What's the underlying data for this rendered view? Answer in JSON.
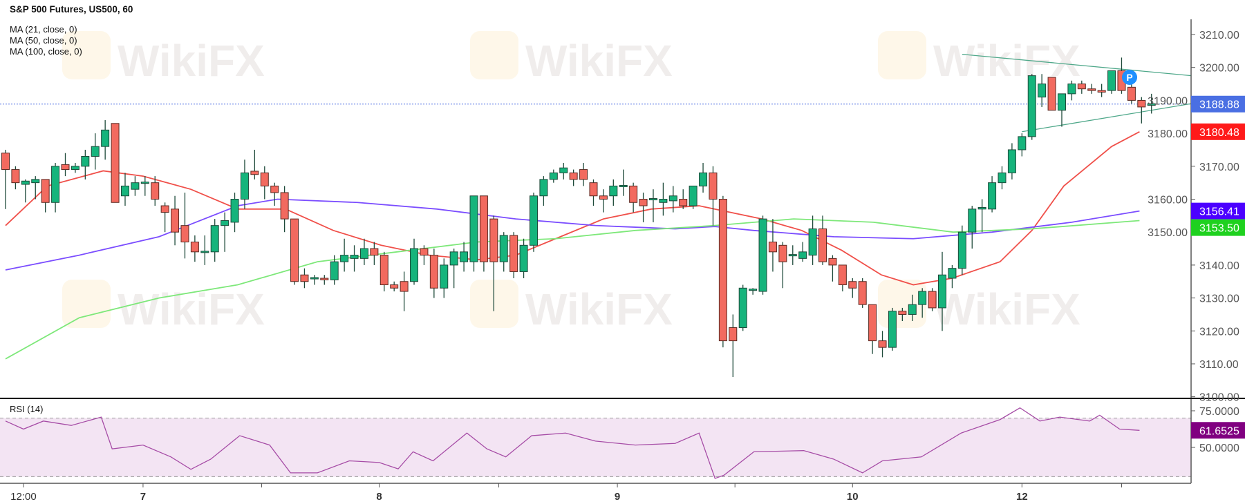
{
  "header": {
    "title": "S&P 500 Futures, US500, 60",
    "indicators": [
      "MA (21, close, 0)",
      "MA (50, close, 0)",
      "MA (100, close, 0)"
    ],
    "rsi_label": "RSI (14)"
  },
  "watermark": "WikiFX",
  "chart_data": [
    {
      "type": "candlestick",
      "title": "S&P 500 Futures, US500, 60",
      "ylim": [
        3100,
        3212
      ],
      "y_ticks": [
        "3210.00",
        "3200.00",
        "3190.00",
        "3180.00",
        "3170.00",
        "3160.00",
        "3150.00",
        "3140.00",
        "3130.00",
        "3120.00",
        "3110.00",
        "3100.00"
      ],
      "x_ticks": [
        {
          "bar": 1.8,
          "label": "12:00"
        },
        {
          "bar": 13.8,
          "label": "7"
        },
        {
          "bar": 25.7,
          "label": ""
        },
        {
          "bar": 37.5,
          "label": "8"
        },
        {
          "bar": 49.5,
          "label": ""
        },
        {
          "bar": 61.4,
          "label": "9"
        },
        {
          "bar": 73.2,
          "label": ""
        },
        {
          "bar": 85,
          "label": "10"
        },
        {
          "bar": 102,
          "label": "12"
        },
        {
          "bar": 112,
          "label": ""
        }
      ],
      "colors": {
        "up": "#16b47c",
        "down": "#f26a5f",
        "outline": "#5a2a22",
        "ma21": "#f0504a",
        "ma50": "#7b4dff",
        "ma100": "#7ee87a",
        "trendline": "#4fa88a"
      },
      "ohlc": [
        [
          3174,
          3175,
          3157,
          3169
        ],
        [
          3169,
          3170,
          3163,
          3165
        ],
        [
          3164.5,
          3166,
          3159,
          3165.5
        ],
        [
          3165,
          3167,
          3160,
          3166
        ],
        [
          3166,
          3166,
          3156,
          3159
        ],
        [
          3159,
          3171,
          3156,
          3170
        ],
        [
          3170.5,
          3174,
          3167,
          3169
        ],
        [
          3169,
          3171,
          3168,
          3170
        ],
        [
          3170,
          3175,
          3166,
          3173
        ],
        [
          3173,
          3180,
          3169,
          3176
        ],
        [
          3176,
          3184,
          3172,
          3181
        ],
        [
          3183,
          3183,
          3159,
          3159
        ],
        [
          3161,
          3168,
          3158,
          3164
        ],
        [
          3163,
          3167,
          3161,
          3165
        ],
        [
          3165,
          3167,
          3161,
          3165.2
        ],
        [
          3165,
          3167,
          3158,
          3160
        ],
        [
          3158,
          3159,
          3150,
          3156
        ],
        [
          3157,
          3161,
          3146,
          3150
        ],
        [
          3152,
          3162,
          3142,
          3147
        ],
        [
          3147,
          3149,
          3141,
          3144
        ],
        [
          3144,
          3149,
          3140,
          3144.2
        ],
        [
          3144,
          3154,
          3141,
          3152
        ],
        [
          3152,
          3156,
          3144,
          3153.5
        ],
        [
          3153,
          3162,
          3150,
          3160
        ],
        [
          3160,
          3172,
          3157,
          3168
        ],
        [
          3168.5,
          3175,
          3166,
          3167.5
        ],
        [
          3168,
          3170,
          3160,
          3164
        ],
        [
          3164,
          3165,
          3158,
          3162
        ],
        [
          3162,
          3164,
          3150,
          3154
        ],
        [
          3154,
          3154,
          3134,
          3135
        ],
        [
          3137,
          3139,
          3133,
          3135
        ],
        [
          3136,
          3137,
          3134,
          3136.2
        ],
        [
          3136,
          3137,
          3134,
          3135.5
        ],
        [
          3135.5,
          3143,
          3134,
          3141
        ],
        [
          3141,
          3148,
          3138,
          3143
        ],
        [
          3142,
          3146,
          3138,
          3143
        ],
        [
          3142,
          3148,
          3140,
          3145
        ],
        [
          3145,
          3147,
          3140,
          3143
        ],
        [
          3143,
          3144,
          3132,
          3134
        ],
        [
          3134,
          3135,
          3132,
          3133
        ],
        [
          3135,
          3138,
          3126,
          3132
        ],
        [
          3135,
          3148,
          3134,
          3145
        ],
        [
          3145,
          3146,
          3140,
          3143
        ],
        [
          3143,
          3145,
          3130,
          3133
        ],
        [
          3133,
          3142,
          3130,
          3140
        ],
        [
          3140,
          3145,
          3133,
          3144
        ],
        [
          3141,
          3147,
          3138,
          3144
        ],
        [
          3141,
          3161,
          3138,
          3161
        ],
        [
          3161,
          3161,
          3138,
          3141
        ],
        [
          3154,
          3155,
          3126,
          3141
        ],
        [
          3141,
          3150,
          3138,
          3149
        ],
        [
          3149,
          3150,
          3136,
          3138
        ],
        [
          3138,
          3148,
          3136,
          3146
        ],
        [
          3146,
          3162,
          3144,
          3161
        ],
        [
          3161,
          3167,
          3158,
          3166
        ],
        [
          3166,
          3169,
          3165,
          3168
        ],
        [
          3168,
          3171,
          3166,
          3169.5
        ],
        [
          3168,
          3169,
          3164,
          3166
        ],
        [
          3169,
          3171,
          3164,
          3166
        ],
        [
          3165,
          3166,
          3158,
          3161
        ],
        [
          3161,
          3163,
          3156,
          3160
        ],
        [
          3161,
          3166,
          3158,
          3164
        ],
        [
          3164,
          3169,
          3161,
          3164.2
        ],
        [
          3164,
          3165,
          3156,
          3159
        ],
        [
          3160,
          3162,
          3153,
          3158
        ],
        [
          3160,
          3163,
          3153,
          3160.2
        ],
        [
          3159,
          3165,
          3155,
          3160
        ],
        [
          3159.5,
          3164,
          3156,
          3161
        ],
        [
          3160,
          3163,
          3157,
          3158
        ],
        [
          3158,
          3164,
          3157,
          3164
        ],
        [
          3164,
          3171,
          3162,
          3168
        ],
        [
          3168,
          3170,
          3152,
          3160
        ],
        [
          3160,
          3161,
          3115,
          3117
        ],
        [
          3121,
          3125,
          3106,
          3117
        ],
        [
          3121,
          3134,
          3120,
          3133
        ],
        [
          3132.5,
          3133,
          3131,
          3132.7
        ],
        [
          3132,
          3155,
          3131,
          3154
        ],
        [
          3147,
          3154,
          3138,
          3144
        ],
        [
          3146,
          3147,
          3133,
          3141
        ],
        [
          3143,
          3146,
          3140,
          3143.2
        ],
        [
          3142,
          3147,
          3141,
          3144
        ],
        [
          3143,
          3155,
          3140,
          3151
        ],
        [
          3151,
          3155,
          3140,
          3141
        ],
        [
          3142,
          3143,
          3135,
          3140
        ],
        [
          3140,
          3140,
          3132,
          3134
        ],
        [
          3135,
          3136,
          3130,
          3133
        ],
        [
          3135,
          3136,
          3127,
          3128
        ],
        [
          3128,
          3128,
          3113,
          3117
        ],
        [
          3117,
          3120,
          3112,
          3115
        ],
        [
          3115,
          3127,
          3114,
          3126
        ],
        [
          3126,
          3127,
          3123,
          3125
        ],
        [
          3125,
          3131,
          3123,
          3128
        ],
        [
          3128,
          3133,
          3124,
          3132
        ],
        [
          3132,
          3133,
          3126,
          3127
        ],
        [
          3127,
          3144,
          3120,
          3137
        ],
        [
          3136,
          3140,
          3133,
          3139
        ],
        [
          3139,
          3152,
          3137,
          3150
        ],
        [
          3150,
          3158,
          3145,
          3157
        ],
        [
          3157,
          3160,
          3150,
          3157.5
        ],
        [
          3157,
          3167,
          3156,
          3165
        ],
        [
          3165,
          3170,
          3163,
          3168
        ],
        [
          3168,
          3177,
          3166,
          3175
        ],
        [
          3175,
          3180,
          3173,
          3179
        ],
        [
          3179,
          3198,
          3178,
          3197.5
        ],
        [
          3191,
          3198,
          3188,
          3195
        ],
        [
          3197,
          3197,
          3187,
          3187
        ],
        [
          3187,
          3192,
          3182,
          3192
        ],
        [
          3192,
          3196,
          3190,
          3195
        ],
        [
          3195,
          3196,
          3192,
          3193.5
        ],
        [
          3193.5,
          3195,
          3192,
          3193
        ],
        [
          3193,
          3195,
          3191,
          3192.5
        ],
        [
          3193,
          3199,
          3192,
          3199
        ],
        [
          3199,
          3203,
          3192,
          3193
        ],
        [
          3194,
          3197,
          3189,
          3190
        ],
        [
          3190,
          3191,
          3183,
          3188
        ],
        [
          3188.5,
          3192,
          3186,
          3189
        ]
      ],
      "moving_averages": [
        {
          "name": "MA (21, close, 0)",
          "points": [
            [
              0,
              3152
            ],
            [
              4.2,
              3164
            ],
            [
              9.8,
              3168.6
            ],
            [
              13.8,
              3167
            ],
            [
              18.6,
              3163
            ],
            [
              23.3,
              3157
            ],
            [
              28.1,
              3157
            ],
            [
              32.9,
              3150.5
            ],
            [
              37.7,
              3146
            ],
            [
              42.5,
              3143
            ],
            [
              47.3,
              3141.6
            ],
            [
              51.2,
              3143
            ],
            [
              55.2,
              3148
            ],
            [
              60,
              3154
            ],
            [
              64.8,
              3157
            ],
            [
              69.6,
              3158
            ],
            [
              75.9,
              3154
            ],
            [
              79.9,
              3150.5
            ],
            [
              83.9,
              3144.5
            ],
            [
              87.9,
              3137
            ],
            [
              91.1,
              3134
            ],
            [
              95,
              3136
            ],
            [
              99.8,
              3141
            ],
            [
              103,
              3150.5
            ],
            [
              106.2,
              3164
            ],
            [
              111,
              3176
            ],
            [
              113.8,
              3180.48
            ]
          ]
        },
        {
          "name": "MA (50, close, 0)",
          "points": [
            [
              0,
              3138.5
            ],
            [
              7.4,
              3143
            ],
            [
              15.4,
              3148.6
            ],
            [
              23.3,
              3158
            ],
            [
              27.3,
              3160
            ],
            [
              35.3,
              3159
            ],
            [
              43.3,
              3157
            ],
            [
              51.2,
              3154
            ],
            [
              59.2,
              3152
            ],
            [
              67.2,
              3151
            ],
            [
              71.2,
              3151.7
            ],
            [
              75.1,
              3150.5
            ],
            [
              83.1,
              3148.6
            ],
            [
              91.1,
              3148
            ],
            [
              99,
              3150
            ],
            [
              107,
              3153
            ],
            [
              113.8,
              3156.41
            ]
          ]
        },
        {
          "name": "MA (100, close, 0)",
          "points": [
            [
              0,
              3111.5
            ],
            [
              7.4,
              3124
            ],
            [
              15.4,
              3130
            ],
            [
              23.3,
              3134
            ],
            [
              31.3,
              3141
            ],
            [
              39.3,
              3144
            ],
            [
              47.3,
              3147
            ],
            [
              55.2,
              3148
            ],
            [
              63.2,
              3150.5
            ],
            [
              71.2,
              3152
            ],
            [
              79.1,
              3154
            ],
            [
              87.1,
              3153
            ],
            [
              95.1,
              3150
            ],
            [
              103,
              3151
            ],
            [
              113.8,
              3153.5
            ]
          ]
        }
      ],
      "trendlines": [
        {
          "from": [
            96,
            3204
          ],
          "to": [
            119,
            3197.5
          ]
        },
        {
          "from": [
            102,
            3180.5
          ],
          "to": [
            119,
            3189
          ]
        }
      ],
      "marker": {
        "bar": 112.8,
        "price": 3197,
        "label": "P",
        "color": "#1e90ff"
      },
      "price_labels": [
        {
          "value": "3188.88",
          "price": 3188.88,
          "color": "#4a6fe3"
        },
        {
          "value": "3180.48",
          "price": 3180.48,
          "color": "#ff1a1a"
        },
        {
          "value": "3156.41",
          "price": 3156.41,
          "color": "#4c00ff"
        },
        {
          "value": "3153.50",
          "price": 3153.5,
          "color": "#1fd11f"
        }
      ],
      "last_price_line": 3188.88
    },
    {
      "type": "line",
      "title": "RSI (14)",
      "y_ticks": [
        "75.0000",
        "50.0000"
      ],
      "band": [
        30,
        70
      ],
      "color": "#a64ca6",
      "current": {
        "value": "61.6525",
        "level": 61.6525,
        "color": "#800080"
      },
      "points": [
        [
          0,
          68
        ],
        [
          1.8,
          62.5
        ],
        [
          3.8,
          68
        ],
        [
          6.6,
          65
        ],
        [
          9.6,
          70.7
        ],
        [
          10.7,
          49
        ],
        [
          13.8,
          51.6
        ],
        [
          16.6,
          43.5
        ],
        [
          18.6,
          35
        ],
        [
          20.6,
          42
        ],
        [
          23.5,
          58
        ],
        [
          26.5,
          51.6
        ],
        [
          28.6,
          32.6
        ],
        [
          31.3,
          32.6
        ],
        [
          34.5,
          40.8
        ],
        [
          37.5,
          39.7
        ],
        [
          39.4,
          35.3
        ],
        [
          40.9,
          47
        ],
        [
          42.9,
          40.8
        ],
        [
          46.3,
          59.8
        ],
        [
          48.3,
          49
        ],
        [
          50.2,
          43.5
        ],
        [
          52.8,
          58
        ],
        [
          56.2,
          59.8
        ],
        [
          59.2,
          54.3
        ],
        [
          63.2,
          51.6
        ],
        [
          67.2,
          52.7
        ],
        [
          69.6,
          59.8
        ],
        [
          71.2,
          28.8
        ],
        [
          72.1,
          31
        ],
        [
          75.1,
          47
        ],
        [
          80.1,
          47.8
        ],
        [
          83.1,
          42
        ],
        [
          86,
          32.6
        ],
        [
          88,
          40.8
        ],
        [
          91.9,
          43.5
        ],
        [
          95.9,
          59.8
        ],
        [
          99.8,
          69
        ],
        [
          101.8,
          77
        ],
        [
          103.8,
          68
        ],
        [
          105.8,
          70.7
        ],
        [
          108.8,
          68
        ],
        [
          109.8,
          72
        ],
        [
          111.8,
          62.5
        ],
        [
          113.8,
          61.65
        ]
      ]
    }
  ]
}
